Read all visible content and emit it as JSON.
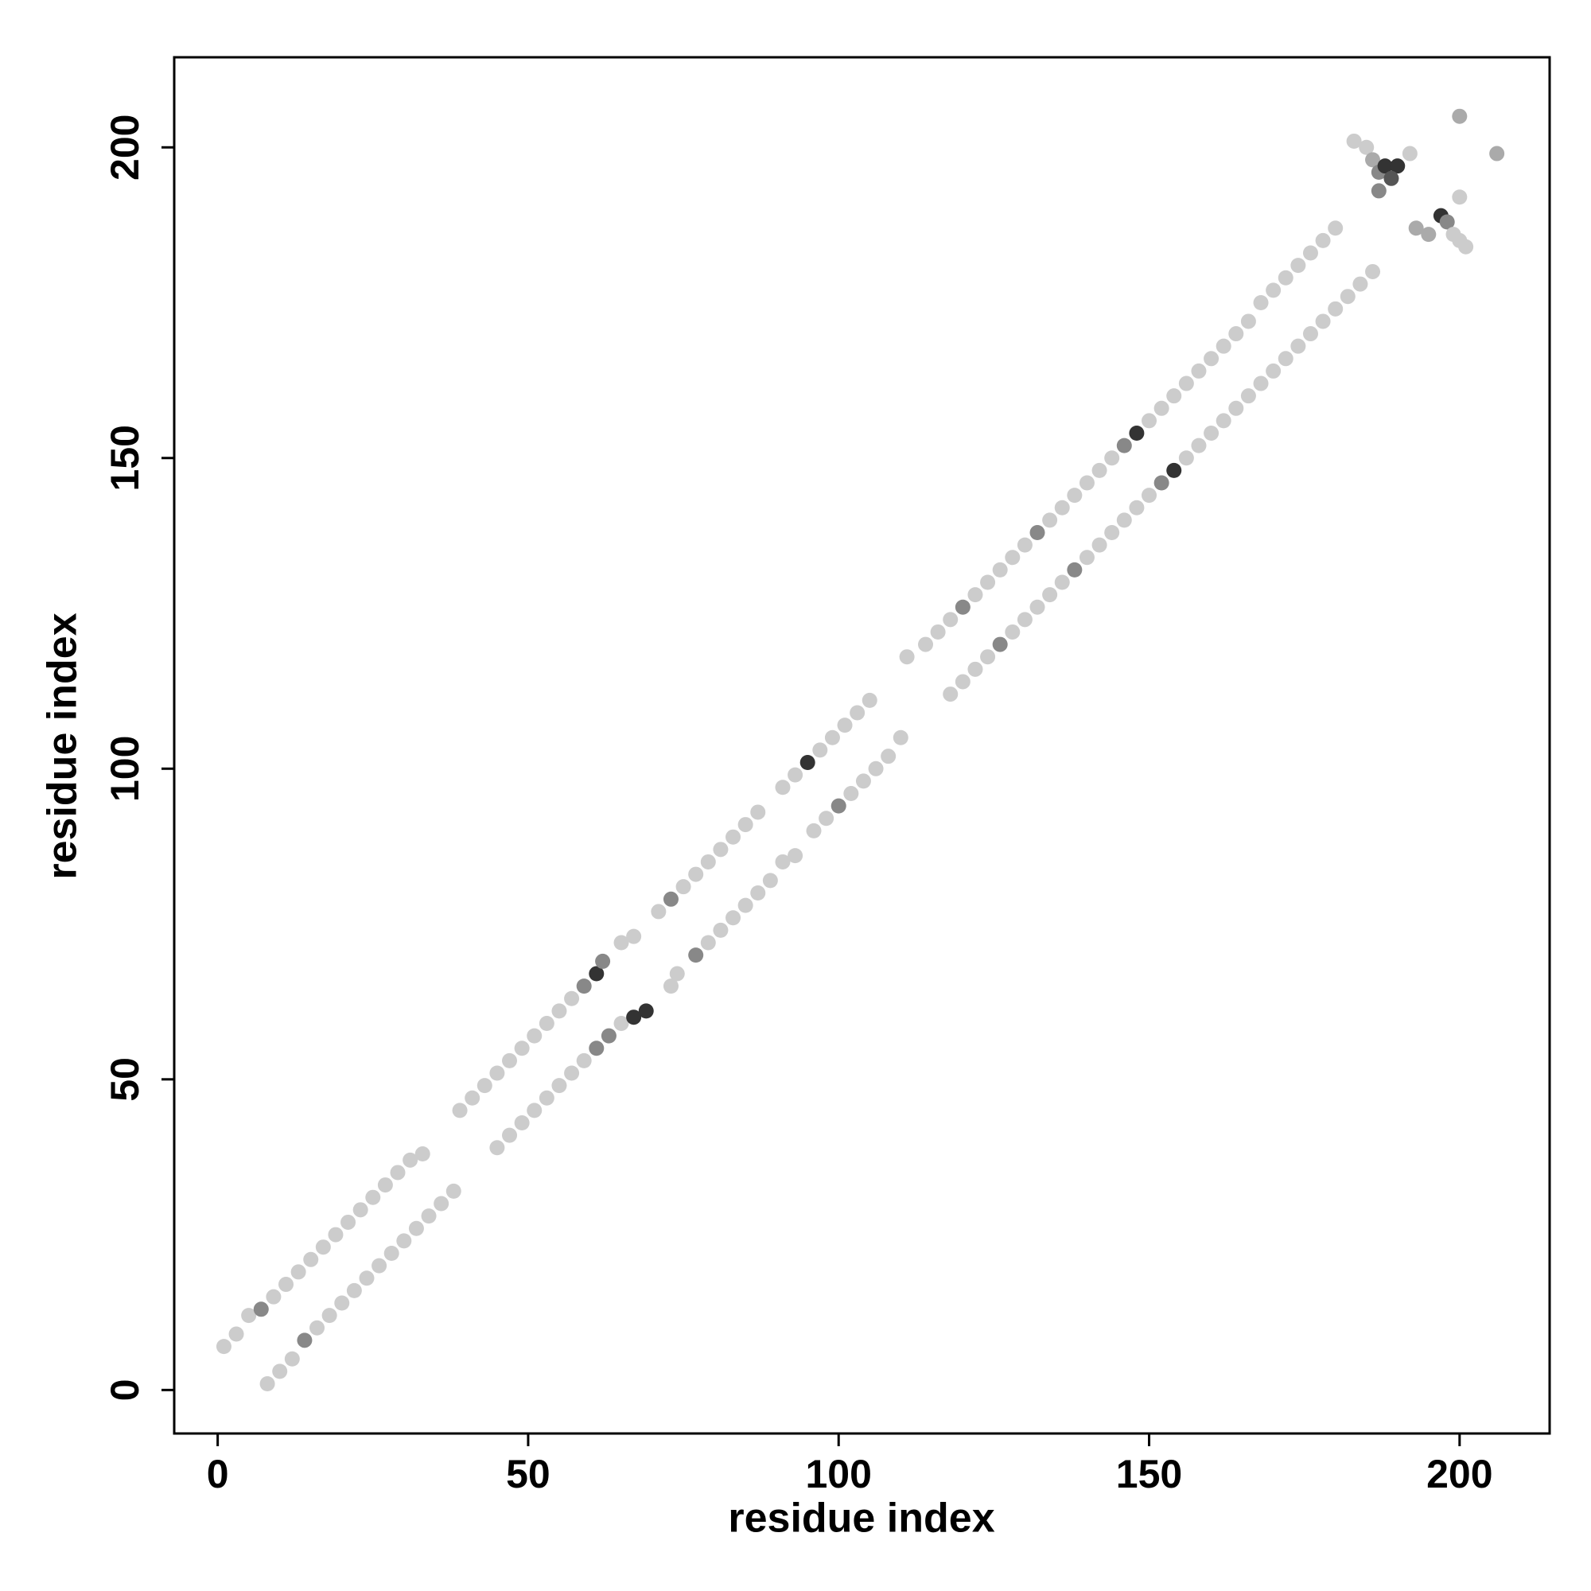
{
  "chart_data": {
    "type": "scatter",
    "xlabel": "residue index",
    "ylabel": "residue index",
    "xlim": [
      -7,
      214.5
    ],
    "ylim": [
      -7,
      214.5
    ],
    "xticks": [
      0,
      50,
      100,
      150,
      200
    ],
    "yticks": [
      0,
      50,
      100,
      150,
      200
    ],
    "grid": false,
    "x": [
      1,
      3,
      5,
      7,
      9,
      11,
      13,
      15,
      17,
      19,
      21,
      23,
      25,
      27,
      29,
      31,
      33,
      39,
      41,
      43,
      45,
      47,
      49,
      51,
      53,
      55,
      57,
      59,
      61,
      62,
      65,
      67,
      71,
      73,
      75,
      77,
      79,
      81,
      83,
      85,
      87,
      91,
      93,
      95,
      97,
      99,
      101,
      103,
      105,
      111,
      114,
      116,
      118,
      120,
      122,
      124,
      126,
      128,
      130,
      132,
      134,
      136,
      138,
      140,
      142,
      144,
      146,
      148,
      150,
      152,
      154,
      156,
      158,
      160,
      162,
      164,
      166,
      168,
      170,
      172,
      174,
      176,
      178,
      180,
      8,
      10,
      12,
      14,
      16,
      18,
      20,
      22,
      24,
      26,
      28,
      30,
      32,
      34,
      36,
      38,
      45,
      47,
      49,
      51,
      53,
      55,
      57,
      59,
      61,
      63,
      65,
      67,
      69,
      73,
      74,
      77,
      79,
      81,
      83,
      85,
      87,
      89,
      91,
      93,
      96,
      98,
      100,
      102,
      104,
      106,
      108,
      110,
      118,
      120,
      122,
      124,
      126,
      128,
      130,
      132,
      134,
      136,
      138,
      140,
      142,
      144,
      146,
      148,
      150,
      152,
      154,
      156,
      158,
      160,
      162,
      164,
      166,
      168,
      170,
      172,
      174,
      176,
      178,
      180,
      182,
      184,
      186,
      183,
      185,
      186,
      187,
      188,
      190,
      187,
      189,
      192,
      193,
      195,
      197,
      198,
      199,
      200,
      201,
      200,
      200,
      206
    ],
    "y": [
      7,
      9,
      12,
      13,
      15,
      17,
      19,
      21,
      23,
      25,
      27,
      29,
      31,
      33,
      35,
      37,
      38,
      45,
      47,
      49,
      51,
      53,
      55,
      57,
      59,
      61,
      63,
      65,
      67,
      69,
      72,
      73,
      77,
      79,
      81,
      83,
      85,
      87,
      89,
      91,
      93,
      97,
      99,
      101,
      103,
      105,
      107,
      109,
      111,
      118,
      120,
      122,
      124,
      126,
      128,
      130,
      132,
      134,
      136,
      138,
      140,
      142,
      144,
      146,
      148,
      150,
      152,
      154,
      156,
      158,
      160,
      162,
      164,
      166,
      168,
      170,
      172,
      175,
      177,
      179,
      181,
      183,
      185,
      187,
      1,
      3,
      5,
      8,
      10,
      12,
      14,
      16,
      18,
      20,
      22,
      24,
      26,
      28,
      30,
      32,
      39,
      41,
      43,
      45,
      47,
      49,
      51,
      53,
      55,
      57,
      59,
      60,
      61,
      65,
      67,
      70,
      72,
      74,
      76,
      78,
      80,
      82,
      85,
      86,
      90,
      92,
      94,
      96,
      98,
      100,
      102,
      105,
      112,
      114,
      116,
      118,
      120,
      122,
      124,
      126,
      128,
      130,
      132,
      134,
      136,
      138,
      140,
      142,
      144,
      146,
      148,
      150,
      152,
      154,
      156,
      158,
      160,
      162,
      164,
      166,
      168,
      170,
      172,
      174,
      176,
      178,
      180,
      201,
      200,
      198,
      196,
      197,
      197,
      193,
      195,
      199,
      187,
      186,
      189,
      188,
      186,
      185,
      184,
      192,
      205,
      199
    ],
    "colors": [
      "#ccc",
      "#ccc",
      "#ccc",
      "#888",
      "#ccc",
      "#ccc",
      "#ccc",
      "#ccc",
      "#ccc",
      "#ccc",
      "#ccc",
      "#ccc",
      "#ccc",
      "#ccc",
      "#ccc",
      "#ccc",
      "#ccc",
      "#ccc",
      "#ccc",
      "#ccc",
      "#ccc",
      "#ccc",
      "#ccc",
      "#ccc",
      "#ccc",
      "#ccc",
      "#ccc",
      "#888",
      "#333",
      "#888",
      "#ccc",
      "#ccc",
      "#ccc",
      "#888",
      "#ccc",
      "#ccc",
      "#ccc",
      "#ccc",
      "#ccc",
      "#ccc",
      "#ccc",
      "#ccc",
      "#ccc",
      "#333",
      "#ccc",
      "#ccc",
      "#ccc",
      "#ccc",
      "#ccc",
      "#ccc",
      "#ccc",
      "#ccc",
      "#ccc",
      "#888",
      "#ccc",
      "#ccc",
      "#ccc",
      "#ccc",
      "#ccc",
      "#888",
      "#ccc",
      "#ccc",
      "#ccc",
      "#ccc",
      "#ccc",
      "#ccc",
      "#888",
      "#333",
      "#ccc",
      "#ccc",
      "#ccc",
      "#ccc",
      "#ccc",
      "#ccc",
      "#ccc",
      "#ccc",
      "#ccc",
      "#ccc",
      "#ccc",
      "#ccc",
      "#ccc",
      "#ccc",
      "#ccc",
      "#ccc",
      "#ccc",
      "#ccc",
      "#ccc",
      "#888",
      "#ccc",
      "#ccc",
      "#ccc",
      "#ccc",
      "#ccc",
      "#ccc",
      "#ccc",
      "#ccc",
      "#ccc",
      "#ccc",
      "#ccc",
      "#ccc",
      "#ccc",
      "#ccc",
      "#ccc",
      "#ccc",
      "#ccc",
      "#ccc",
      "#ccc",
      "#ccc",
      "#888",
      "#888",
      "#ccc",
      "#333",
      "#333",
      "#ccc",
      "#ccc",
      "#888",
      "#ccc",
      "#ccc",
      "#ccc",
      "#ccc",
      "#ccc",
      "#ccc",
      "#ccc",
      "#ccc",
      "#ccc",
      "#ccc",
      "#888",
      "#ccc",
      "#ccc",
      "#ccc",
      "#ccc",
      "#ccc",
      "#ccc",
      "#ccc",
      "#ccc",
      "#ccc",
      "#888",
      "#ccc",
      "#ccc",
      "#ccc",
      "#ccc",
      "#ccc",
      "#888",
      "#ccc",
      "#ccc",
      "#ccc",
      "#ccc",
      "#ccc",
      "#ccc",
      "#888",
      "#333",
      "#ccc",
      "#ccc",
      "#ccc",
      "#ccc",
      "#ccc",
      "#ccc",
      "#ccc",
      "#ccc",
      "#ccc",
      "#ccc",
      "#ccc",
      "#ccc",
      "#ccc",
      "#ccc",
      "#ccc",
      "#ccc",
      "#ccc",
      "#ccc",
      "#aaa",
      "#888",
      "#333",
      "#333",
      "#888",
      "#555",
      "#ccc",
      "#aaa",
      "#aaa",
      "#333",
      "#888",
      "#ccc",
      "#ccc",
      "#ccc",
      "#ccc",
      "#aaa",
      "#aaa"
    ]
  }
}
